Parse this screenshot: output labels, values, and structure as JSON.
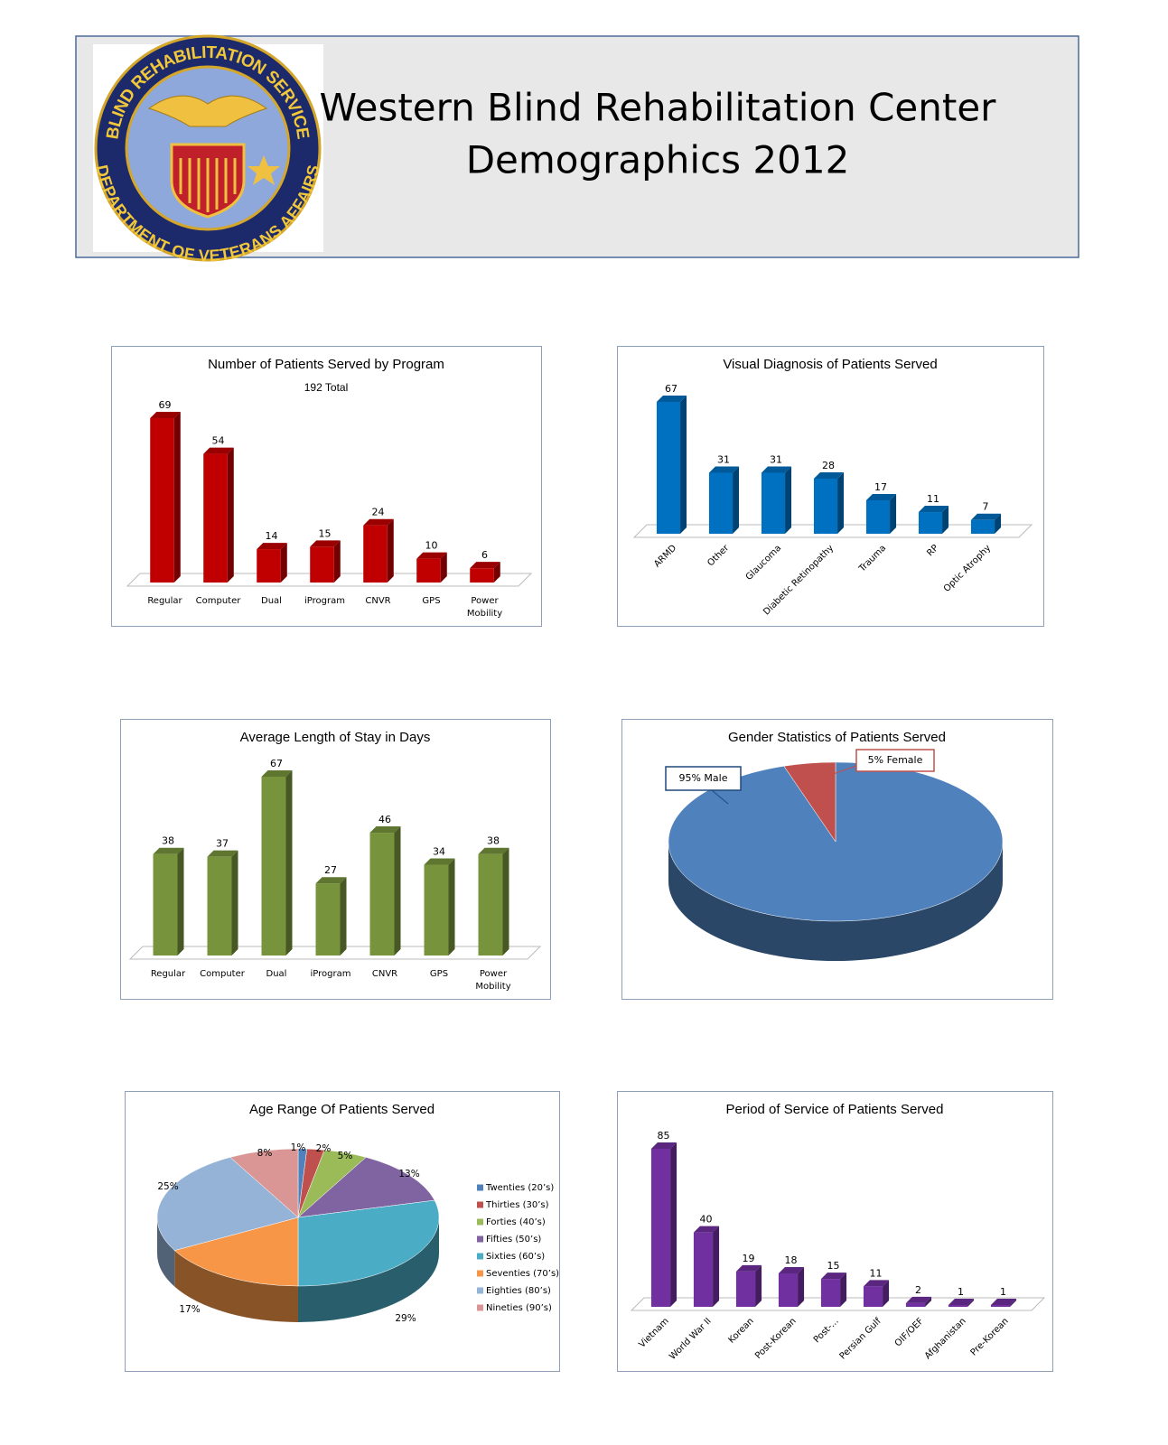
{
  "header": {
    "title_lines": [
      "Western Blind Rehabilitation Center",
      "Demographics 2012"
    ],
    "logo": {
      "top": "BLIND REHABILITATION SERVICE",
      "bottom": "DEPARTMENT OF VETERANS AFFAIRS"
    }
  },
  "chart_data": [
    {
      "type": "bar",
      "title": "Number of Patients Served by Program",
      "subtitle": "192 Total",
      "categories": [
        "Regular",
        "Computer",
        "Dual",
        "iProgram",
        "CNVR",
        "GPS",
        "Power Mobility"
      ],
      "values": [
        69,
        54,
        14,
        15,
        24,
        10,
        6
      ],
      "color": "#c00000"
    },
    {
      "type": "bar",
      "title": "Visual Diagnosis of Patients Served",
      "categories": [
        "ARMD",
        "Other",
        "Glaucoma",
        "Diabetic Retinopathy",
        "Trauma",
        "RP",
        "Optic Atrophy"
      ],
      "values": [
        67,
        31,
        31,
        28,
        17,
        11,
        7
      ],
      "color": "#0070c0"
    },
    {
      "type": "bar",
      "title": "Average Length of Stay in Days",
      "categories": [
        "Regular",
        "Computer",
        "Dual",
        "iProgram",
        "CNVR",
        "GPS",
        "Power Mobility"
      ],
      "values": [
        38,
        37,
        67,
        27,
        46,
        34,
        38
      ],
      "color": "#77933c"
    },
    {
      "type": "pie",
      "title": "Gender Statistics of Patients Served",
      "values": [
        95,
        5
      ],
      "value_labels": [
        "95% Male",
        "5% Female"
      ],
      "colors": [
        "#4f81bd",
        "#c0504d"
      ]
    },
    {
      "type": "pie",
      "title": "Age Range Of Patients Served",
      "categories": [
        "Twenties (20’s)",
        "Thirties (30’s)",
        "Forties (40’s)",
        "Fifties (50’s)",
        "Sixties (60’s)",
        "Seventies (70’s)",
        "Eighties (80’s)",
        "Nineties (90’s)"
      ],
      "values": [
        1,
        2,
        5,
        13,
        29,
        17,
        25,
        8
      ],
      "value_labels": [
        "1%",
        "2%",
        "5%",
        "13%",
        "29%",
        "17%",
        "25%",
        "8%"
      ],
      "colors": [
        "#4f81bd",
        "#c0504d",
        "#9bbb59",
        "#8064a2",
        "#4bacc6",
        "#f79646",
        "#95b3d7",
        "#d99694"
      ]
    },
    {
      "type": "bar",
      "title": "Period of Service of Patients Served",
      "categories": [
        "Vietnam",
        "World War II",
        "Korean",
        "Post-Korean",
        "Post-...",
        "Persian Gulf",
        "OIF/OEF",
        "Afghanistan",
        "Pre-Korean"
      ],
      "values": [
        85,
        40,
        19,
        18,
        15,
        11,
        2,
        1,
        1
      ],
      "color": "#7030a0"
    }
  ]
}
